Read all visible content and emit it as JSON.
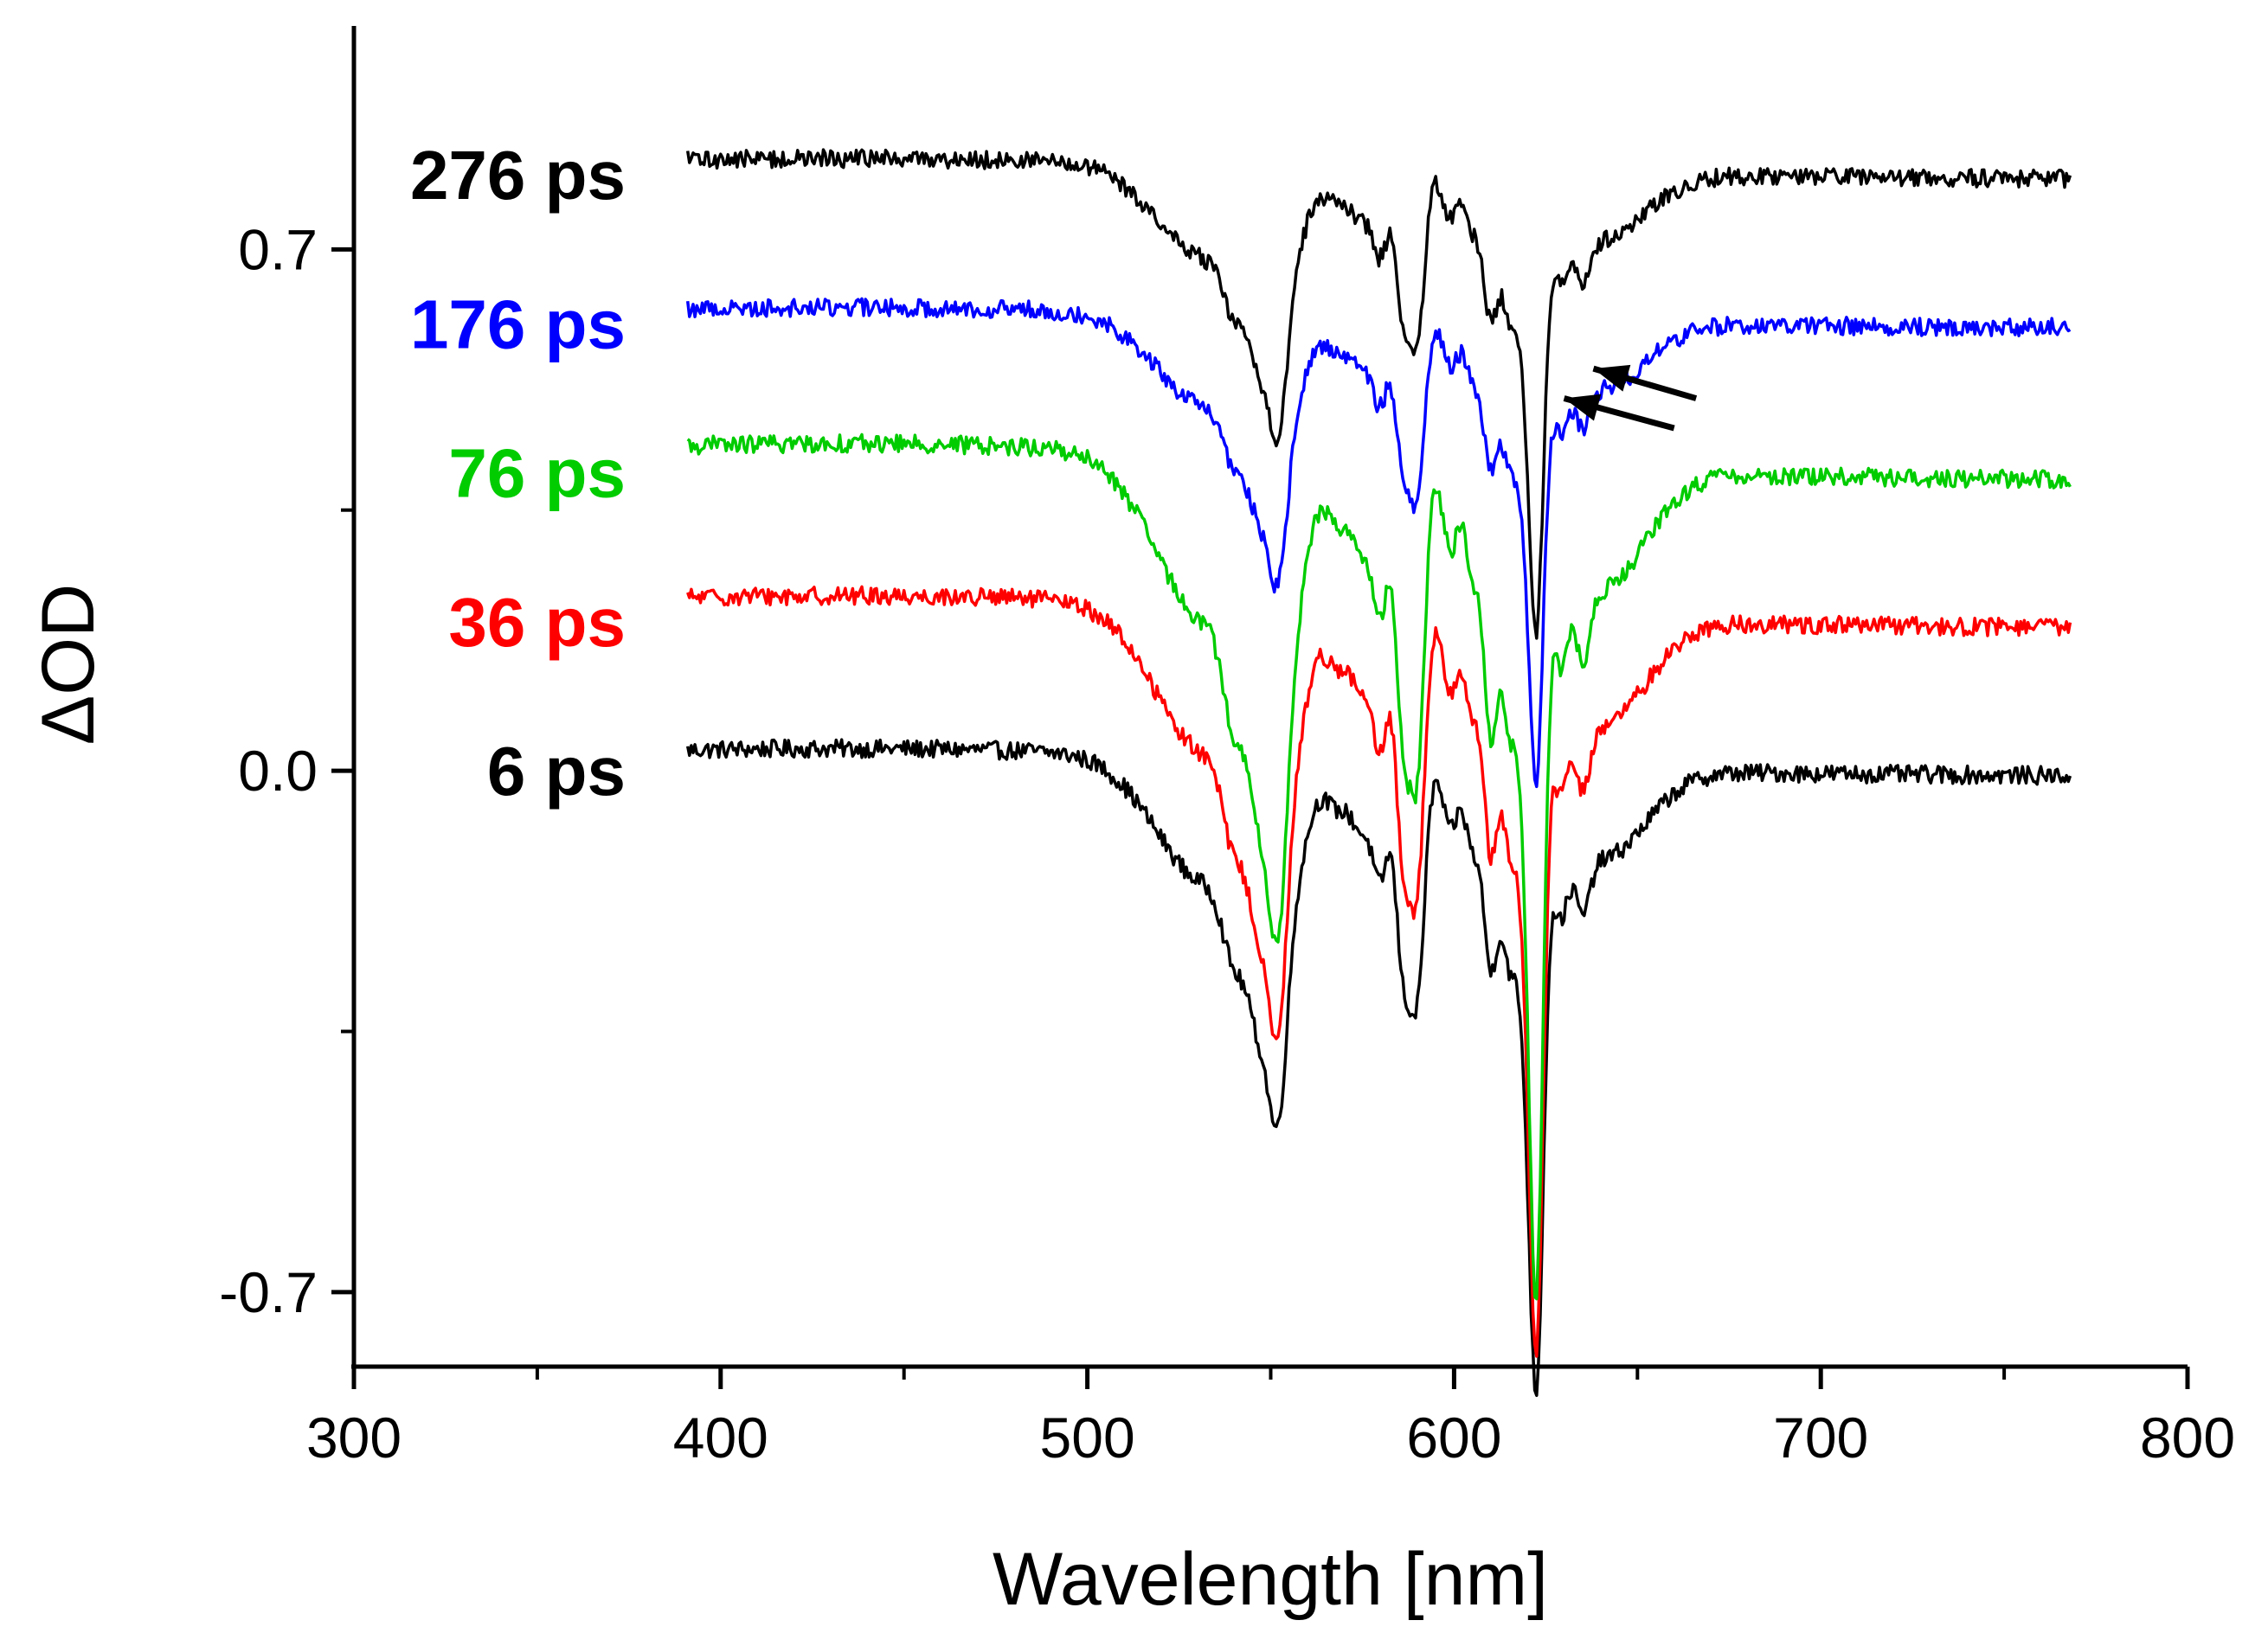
{
  "chart_data": {
    "type": "line",
    "title": "",
    "xlabel": "Wavelength [nm]",
    "ylabel": "ΔOD",
    "xlim": [
      300,
      800
    ],
    "ylim": [
      -0.8,
      1.0
    ],
    "x_ticks": [
      300,
      400,
      500,
      600,
      700,
      800
    ],
    "x_minor_ticks": [
      350,
      450,
      550,
      650,
      750
    ],
    "y_ticks": [
      -0.7,
      0.0,
      0.7
    ],
    "y_tick_labels": [
      "-0.7",
      "0.0",
      "0.7"
    ],
    "y_minor_ticks": [
      -0.35,
      0.35
    ],
    "grid": false,
    "x_range": [
      391,
      768
    ],
    "dips": [
      {
        "center": 533,
        "width": 14,
        "weight": 0.5
      },
      {
        "center": 540,
        "width": 3,
        "weight": 0.35
      },
      {
        "center": 545,
        "width": 2.5,
        "weight": 0.35
      },
      {
        "center": 548,
        "width": 2.5,
        "weight": 0.45
      },
      {
        "center": 552,
        "width": 2.5,
        "weight": 0.9
      },
      {
        "center": 556,
        "width": 4,
        "weight": 0.35
      },
      {
        "center": 568,
        "width": 3,
        "weight": 0.15
      },
      {
        "center": 575,
        "width": 3,
        "weight": 0.25
      },
      {
        "center": 580,
        "width": 2,
        "weight": 0.4
      },
      {
        "center": 586,
        "width": 2,
        "weight": 0.75
      },
      {
        "center": 590,
        "width": 2,
        "weight": 0.85
      },
      {
        "center": 599,
        "width": 2,
        "weight": 0.25
      },
      {
        "center": 605,
        "width": 2,
        "weight": 0.3
      },
      {
        "center": 610,
        "width": 2,
        "weight": 0.75
      },
      {
        "center": 615,
        "width": 2,
        "weight": 0.65
      },
      {
        "center": 619,
        "width": 2,
        "weight": 0.6
      },
      {
        "center": 622.5,
        "width": 2,
        "weight": 2.2
      },
      {
        "center": 629,
        "width": 2,
        "weight": 0.35
      },
      {
        "center": 635,
        "width": 2,
        "weight": 0.25
      },
      {
        "center": 640,
        "width": 12,
        "weight": 0.35
      }
    ],
    "series": [
      {
        "name": "6 ps",
        "label": "6 ps",
        "color": "#000000",
        "offset": 0.0,
        "amplitude": 0.34
      },
      {
        "name": "36 ps",
        "label": "36 ps",
        "color": "#ff0000",
        "offset": 0.2,
        "amplitude": 0.4
      },
      {
        "name": "76 ps",
        "label": "76 ps",
        "color": "#00cc00",
        "offset": 0.4,
        "amplitude": 0.45
      },
      {
        "name": "176 ps",
        "label": "176 ps",
        "color": "#0000ff",
        "offset": 0.6,
        "amplitude": 0.25
      },
      {
        "name": "276 ps",
        "label": "276 ps",
        "color": "#000000",
        "offset": 0.8,
        "amplitude": 0.25
      }
    ],
    "annotations": [
      {
        "type": "arrow",
        "from": [
          660,
          0.46
        ],
        "to": [
          630,
          0.5
        ]
      },
      {
        "type": "arrow",
        "from": [
          666,
          0.5
        ],
        "to": [
          638,
          0.54
        ]
      }
    ]
  }
}
